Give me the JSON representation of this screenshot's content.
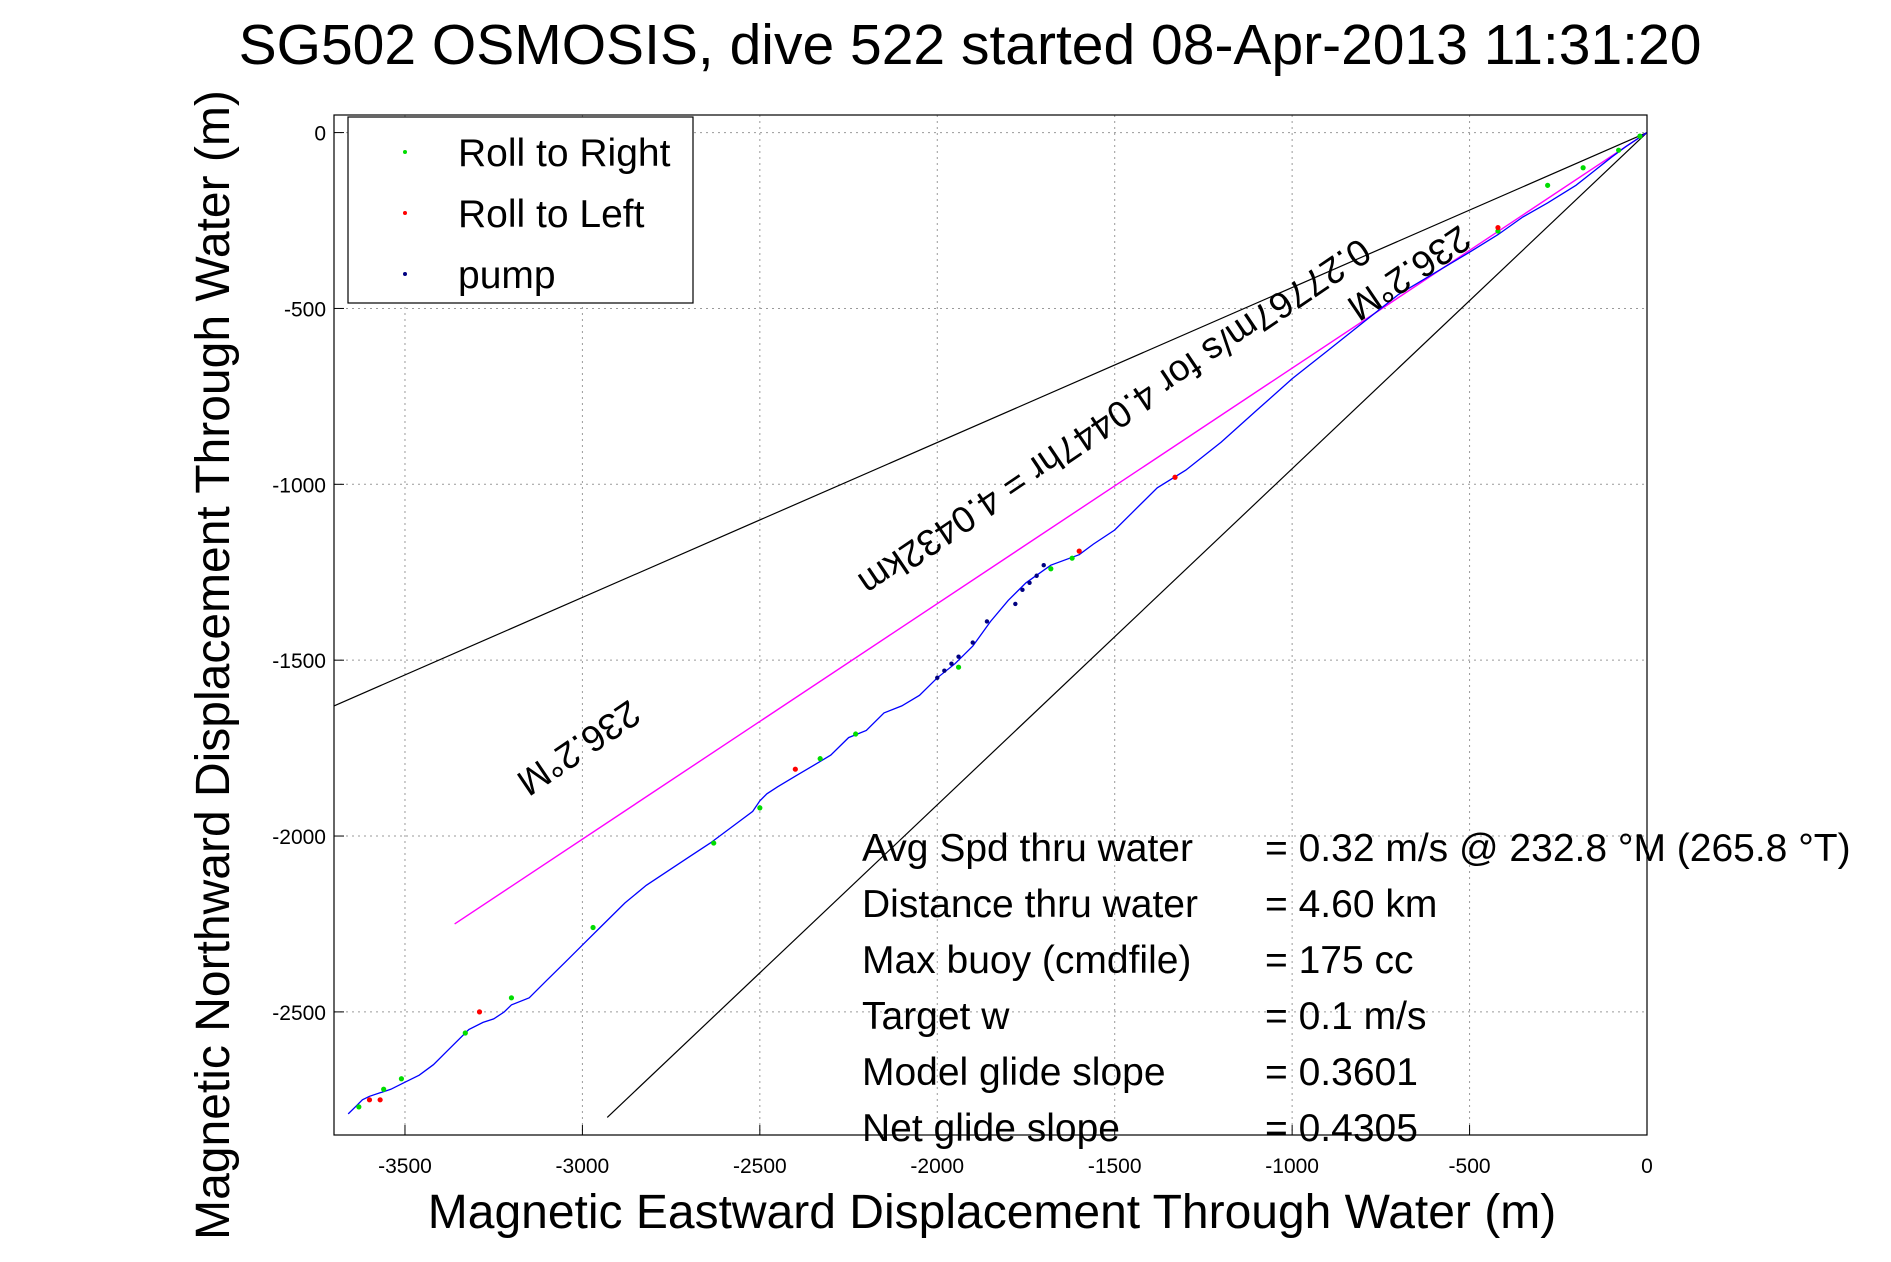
{
  "chart_data": {
    "type": "line",
    "title": "SG502 OSMOSIS, dive 522 started 08-Apr-2013 11:31:20",
    "xlabel": "Magnetic Eastward Displacement Through Water (m)",
    "ylabel": "Magnetic Northward Displacement Through Water (m)",
    "xlim": [
      -3700,
      0
    ],
    "ylim": [
      -2850,
      50
    ],
    "xticks": [
      -3500,
      -3000,
      -2500,
      -2000,
      -1500,
      -1000,
      -500,
      0
    ],
    "yticks": [
      0,
      -500,
      -1000,
      -1500,
      -2000,
      -2500
    ],
    "grid": true,
    "legend_position": "top-left",
    "legend": [
      {
        "label": "Roll to Right",
        "color": "#00dd00"
      },
      {
        "label": "Roll to Left",
        "color": "#ff0000"
      },
      {
        "label": "pump",
        "color": "#000080"
      }
    ],
    "track": {
      "color": "#0000ff",
      "x": [
        0,
        -30,
        -60,
        -100,
        -150,
        -200,
        -280,
        -350,
        -420,
        -500,
        -600,
        -700,
        -800,
        -900,
        -1000,
        -1100,
        -1200,
        -1300,
        -1380,
        -1450,
        -1500,
        -1560,
        -1600,
        -1680,
        -1750,
        -1800,
        -1850,
        -1900,
        -1950,
        -2000,
        -2050,
        -2100,
        -2150,
        -2200,
        -2250,
        -2300,
        -2350,
        -2400,
        -2450,
        -2480,
        -2500,
        -2520,
        -2560,
        -2600,
        -2640,
        -2700,
        -2760,
        -2820,
        -2880,
        -2950,
        -3000,
        -3050,
        -3100,
        -3150,
        -3200,
        -3220,
        -3250,
        -3280,
        -3320,
        -3380,
        -3420,
        -3460,
        -3500,
        -3540,
        -3570,
        -3600,
        -3620,
        -3640,
        -3660
      ],
      "y": [
        0,
        -20,
        -40,
        -70,
        -110,
        -150,
        -200,
        -240,
        -290,
        -340,
        -400,
        -460,
        -540,
        -620,
        -700,
        -790,
        -880,
        -960,
        -1010,
        -1080,
        -1130,
        -1170,
        -1200,
        -1230,
        -1280,
        -1330,
        -1390,
        -1460,
        -1510,
        -1550,
        -1600,
        -1630,
        -1650,
        -1700,
        -1720,
        -1770,
        -1800,
        -1830,
        -1860,
        -1880,
        -1900,
        -1930,
        -1960,
        -1990,
        -2020,
        -2060,
        -2100,
        -2140,
        -2190,
        -2260,
        -2310,
        -2360,
        -2410,
        -2460,
        -2480,
        -2500,
        -2520,
        -2530,
        -2550,
        -2610,
        -2650,
        -2680,
        -2700,
        -2720,
        -2730,
        -2740,
        -2750,
        -2770,
        -2790
      ]
    },
    "roll_right_points": {
      "x": [
        -20,
        -80,
        -180,
        -280,
        -420,
        -1620,
        -1680,
        -1940,
        -2230,
        -2330,
        -2500,
        -2630,
        -2970,
        -3200,
        -3330,
        -3510,
        -3560,
        -3630
      ],
      "y": [
        -10,
        -50,
        -100,
        -150,
        -280,
        -1210,
        -1240,
        -1520,
        -1710,
        -1780,
        -1920,
        -2020,
        -2260,
        -2460,
        -2560,
        -2690,
        -2720,
        -2770
      ]
    },
    "roll_left_points": {
      "x": [
        -420,
        -1330,
        -1600,
        -2400,
        -3290,
        -3570,
        -3600
      ],
      "y": [
        -270,
        -980,
        -1190,
        -1810,
        -2500,
        -2750,
        -2750
      ]
    },
    "pump_points": {
      "x": [
        -1700,
        -1720,
        -1740,
        -1760,
        -1780,
        -1860,
        -1900,
        -1940,
        -1960,
        -1980,
        -2000
      ],
      "y": [
        -1230,
        -1260,
        -1280,
        -1300,
        -1340,
        -1390,
        -1450,
        -1490,
        -1510,
        -1530,
        -1550
      ]
    },
    "heading_line": {
      "color": "#ff00ff",
      "x": [
        0,
        -3360
      ],
      "y": [
        0,
        -2250
      ],
      "label": "236.2°M"
    },
    "bound_lines": [
      {
        "color": "#000000",
        "x": [
          0,
          -3700
        ],
        "y": [
          0,
          -1630
        ]
      },
      {
        "color": "#000000",
        "x": [
          0,
          -2930
        ],
        "y": [
          0,
          -2800
        ]
      }
    ],
    "annotations": [
      {
        "text": "236.2°M",
        "x": -3030,
        "y": -1720,
        "rotation": -34
      },
      {
        "text": "236.2°M",
        "x": -690,
        "y": -370,
        "rotation": -34
      },
      {
        "text": "0.27767m/s for 4.0447hr = 4.0432km",
        "x": -1520,
        "y": -780,
        "rotation": -34
      }
    ],
    "stats": [
      {
        "label": "Avg Spd thru water",
        "value": "=  0.32 m/s @ 232.8 °M (265.8 °T)"
      },
      {
        "label": "Distance thru water",
        "value": "=  4.60 km"
      },
      {
        "label": "Max buoy (cmdfile)",
        "value": "= 175 cc"
      },
      {
        "label": "Target w",
        "value": "= 0.1 m/s"
      },
      {
        "label": "Model glide slope",
        "value": "= 0.3601"
      },
      {
        "label": "Net glide slope",
        "value": "= 0.4305"
      }
    ]
  }
}
